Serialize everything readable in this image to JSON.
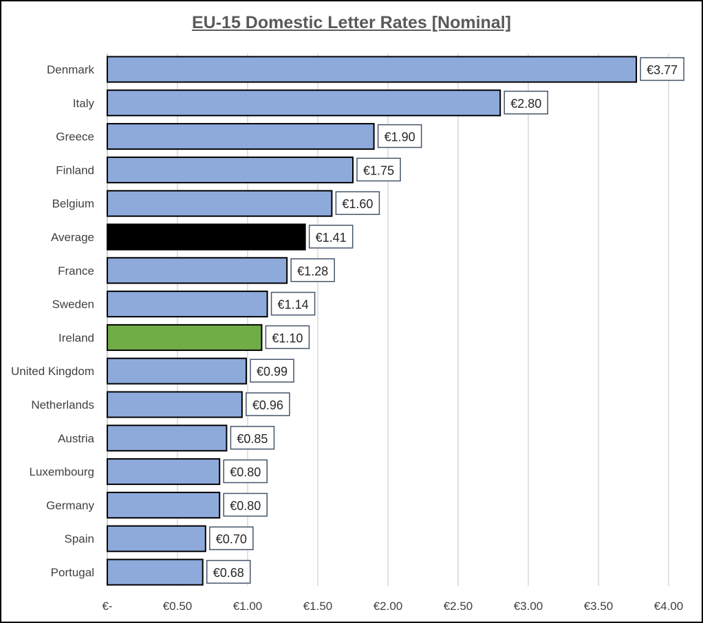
{
  "chart_data": {
    "type": "bar",
    "orientation": "horizontal",
    "title": "EU-15 Domestic Letter Rates [Nominal]",
    "xlabel": "",
    "ylabel": "",
    "xlim": [
      0,
      4
    ],
    "grid": true,
    "legend": "none",
    "currency_symbol": "€",
    "categories": [
      "Denmark",
      "Italy",
      "Greece",
      "Finland",
      "Belgium",
      "Average",
      "France",
      "Sweden",
      "Ireland",
      "United Kingdom",
      "Netherlands",
      "Austria",
      "Luxembourg",
      "Germany",
      "Spain",
      "Portugal"
    ],
    "values": [
      3.77,
      2.8,
      1.9,
      1.75,
      1.6,
      1.41,
      1.28,
      1.14,
      1.1,
      0.99,
      0.96,
      0.85,
      0.8,
      0.8,
      0.7,
      0.68
    ],
    "data_labels": [
      "€3.77",
      "€2.80",
      "€1.90",
      "€1.75",
      "€1.60",
      "€1.41",
      "€1.28",
      "€1.14",
      "€1.10",
      "€0.99",
      "€0.96",
      "€0.85",
      "€0.80",
      "€0.80",
      "€0.70",
      "€0.68"
    ],
    "x_ticks": [
      0,
      0.5,
      1,
      1.5,
      2,
      2.5,
      3,
      3.5,
      4
    ],
    "x_tick_labels": [
      "€-",
      "€0.50",
      "€1.00",
      "€1.50",
      "€2.00",
      "€2.50",
      "€3.00",
      "€3.50",
      "€4.00"
    ],
    "colors": {
      "default": "#8eaadb",
      "highlight": {
        "Average": "#000000",
        "Ireland": "#70ad47"
      },
      "bar_border": "#000000",
      "gridline": "#d9d9d9",
      "label_border": "#44546a"
    }
  }
}
